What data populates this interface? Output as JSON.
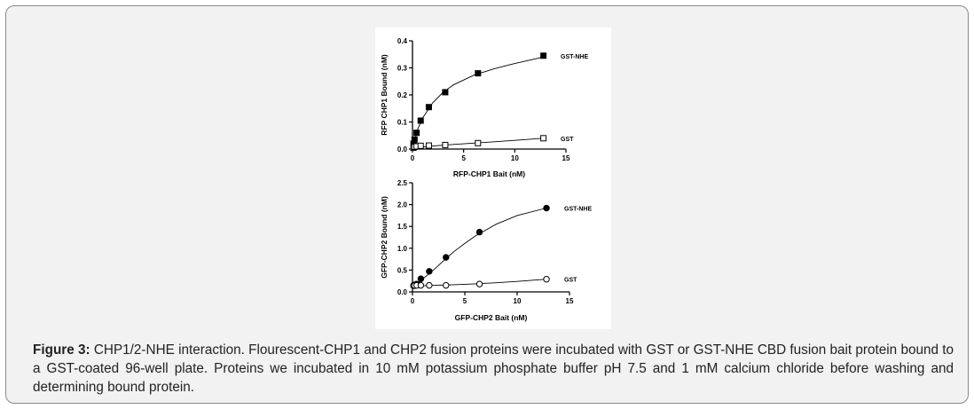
{
  "caption": {
    "lead": "Figure 3:",
    "text": "CHP1/2-NHE interaction. Flourescent-CHP1 and CHP2 fusion proteins were incubated with GST or GST-NHE CBD fusion bait protein bound to a GST-coated 96-well plate. Proteins we incubated in 10 mM potassium phosphate buffer pH 7.5 and 1 mM calcium chloride before washing and determining bound protein."
  },
  "chart_data": [
    {
      "type": "scatter",
      "xlabel": "RFP-CHP1 Bait (nM)",
      "ylabel": "RFP CHP1 Bound (nM)",
      "xlim": [
        0,
        15
      ],
      "ylim": [
        0,
        0.4
      ],
      "xticks": [
        "0",
        "5",
        "10",
        "15"
      ],
      "yticks": [
        "0.0",
        "0.1",
        "0.2",
        "0.3",
        "0.4"
      ],
      "grid": false,
      "legend": "inline labels at right end of each series",
      "series": [
        {
          "name": "GST-NHE",
          "marker": "filled-square",
          "x": [
            0.1,
            0.2,
            0.4,
            0.8,
            1.6,
            3.2,
            6.4,
            12.8
          ],
          "y": [
            0.02,
            0.035,
            0.06,
            0.105,
            0.155,
            0.21,
            0.28,
            0.345
          ],
          "fit": [
            [
              0,
              0
            ],
            [
              0.5,
              0.073
            ],
            [
              1,
              0.115
            ],
            [
              2,
              0.172
            ],
            [
              3,
              0.21
            ],
            [
              4,
              0.237
            ],
            [
              6,
              0.273
            ],
            [
              8,
              0.297
            ],
            [
              10,
              0.316
            ],
            [
              12.8,
              0.34
            ]
          ]
        },
        {
          "name": "GST",
          "marker": "open-square",
          "x": [
            0.1,
            0.2,
            0.4,
            0.8,
            1.6,
            3.2,
            6.4,
            12.8
          ],
          "y": [
            0.005,
            0.008,
            0.01,
            0.012,
            0.013,
            0.015,
            0.022,
            0.04
          ],
          "fit": [
            [
              0,
              0.004
            ],
            [
              2,
              0.011
            ],
            [
              4,
              0.017
            ],
            [
              6,
              0.022
            ],
            [
              8,
              0.027
            ],
            [
              10,
              0.032
            ],
            [
              12.8,
              0.04
            ]
          ]
        }
      ]
    },
    {
      "type": "scatter",
      "xlabel": "GFP-CHP2 Bait (nM)",
      "ylabel": "GFP-CHP2 Bound (nM)",
      "xlim": [
        0,
        15
      ],
      "ylim": [
        0,
        2.5
      ],
      "xticks": [
        "0",
        "5",
        "10",
        "15"
      ],
      "yticks": [
        "0.0",
        "0.5",
        "1.0",
        "1.5",
        "2.0",
        "2.5"
      ],
      "grid": false,
      "legend": "inline labels at right end of each series",
      "series": [
        {
          "name": "GST-NHE",
          "marker": "filled-circle",
          "x": [
            0.1,
            0.2,
            0.4,
            0.8,
            1.6,
            3.2,
            6.4,
            12.8
          ],
          "y": [
            0.15,
            0.16,
            0.18,
            0.3,
            0.47,
            0.79,
            1.37,
            1.92
          ],
          "fit": [
            [
              0,
              0.12
            ],
            [
              0.5,
              0.2
            ],
            [
              1,
              0.3
            ],
            [
              2,
              0.5
            ],
            [
              3,
              0.72
            ],
            [
              4,
              0.93
            ],
            [
              5,
              1.11
            ],
            [
              6,
              1.28
            ],
            [
              8,
              1.55
            ],
            [
              10,
              1.75
            ],
            [
              12.8,
              1.92
            ]
          ]
        },
        {
          "name": "GST",
          "marker": "open-circle",
          "x": [
            0.1,
            0.2,
            0.4,
            0.8,
            1.6,
            3.2,
            6.4,
            12.8
          ],
          "y": [
            0.14,
            0.145,
            0.15,
            0.15,
            0.15,
            0.15,
            0.18,
            0.29
          ],
          "fit": [
            [
              0,
              0.13
            ],
            [
              2,
              0.15
            ],
            [
              4,
              0.165
            ],
            [
              6,
              0.185
            ],
            [
              8,
              0.21
            ],
            [
              10,
              0.24
            ],
            [
              12.8,
              0.29
            ]
          ]
        }
      ]
    }
  ]
}
